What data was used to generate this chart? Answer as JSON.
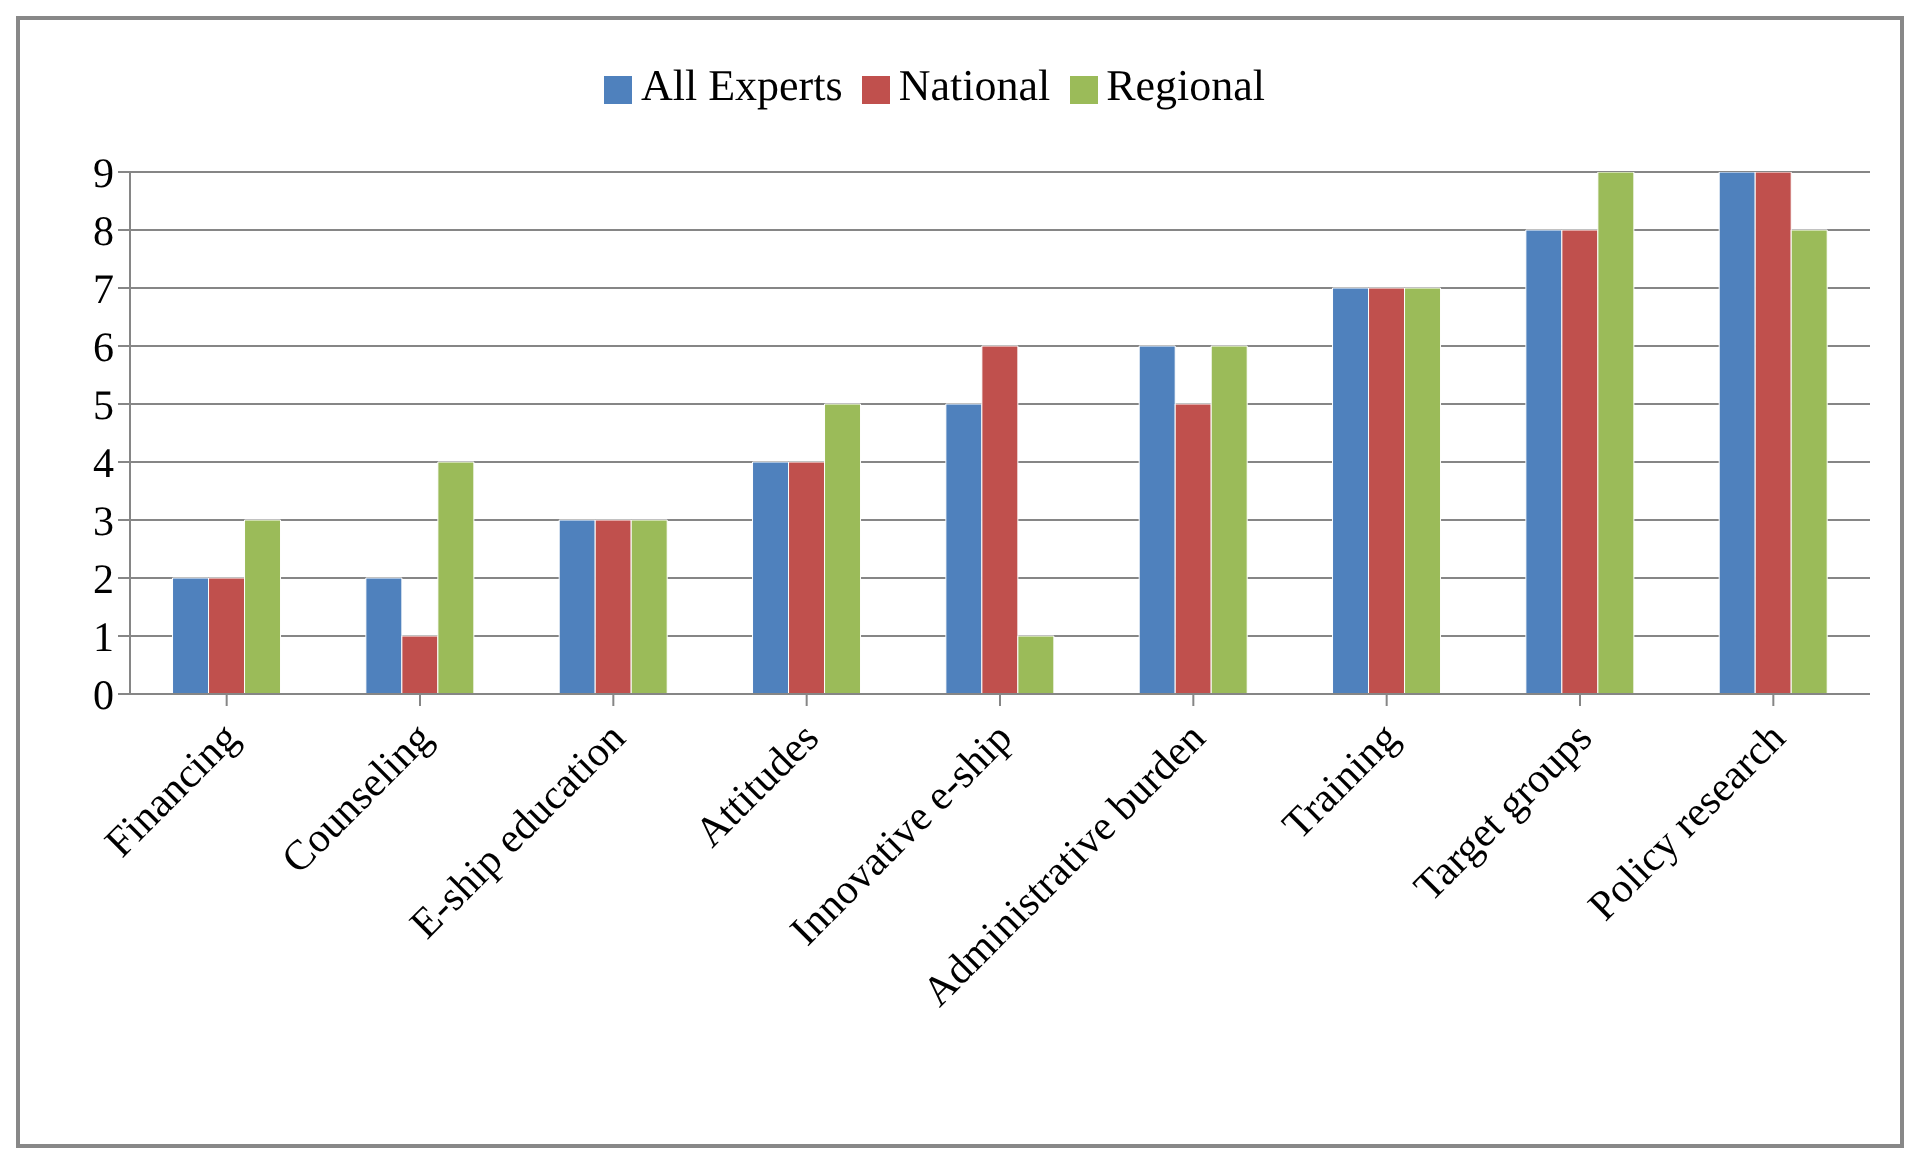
{
  "chart_data": {
    "type": "bar",
    "categories": [
      "Financing",
      "Counseling",
      "E-ship education",
      "Attitudes",
      "Innovative e-ship",
      "Administrative burden",
      "Training",
      "Target groups",
      "Policy research"
    ],
    "series": [
      {
        "name": "All Experts",
        "color": "#4f81bd",
        "values": [
          2,
          2,
          3,
          4,
          5,
          6,
          7,
          8,
          9
        ]
      },
      {
        "name": "National",
        "color": "#c0504d",
        "values": [
          2,
          1,
          3,
          4,
          6,
          5,
          7,
          8,
          9
        ]
      },
      {
        "name": "Regional",
        "color": "#9bbb59",
        "values": [
          3,
          4,
          3,
          5,
          1,
          6,
          7,
          9,
          8
        ]
      }
    ],
    "ylim": [
      0,
      9
    ],
    "yticks": [
      0,
      1,
      2,
      3,
      4,
      5,
      6,
      7,
      8,
      9
    ],
    "grid": "y",
    "legend": "top"
  }
}
